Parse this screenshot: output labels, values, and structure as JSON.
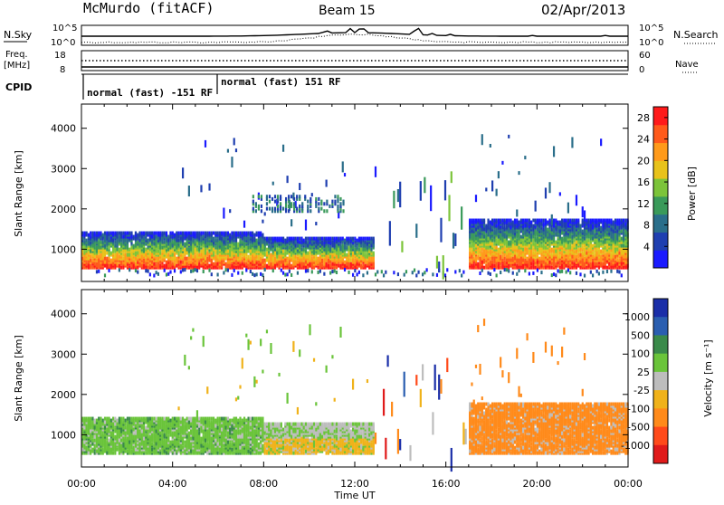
{
  "header": {
    "station": "McMurdo (fitACF)",
    "beam": "Beam 15",
    "date": "02/Apr/2013"
  },
  "top_panels": {
    "nsky_label": "N.Sky",
    "nsearch_label": "N.Search",
    "noise_tick_top": "10^5",
    "noise_tick_bottom": "10^0",
    "noise_tick_top_right": "10^5",
    "noise_tick_bottom_right": "10^0",
    "freq_label_1": "Freq.",
    "freq_label_2": "[MHz]",
    "freq_tick_top": "18",
    "freq_tick_bottom": "8",
    "nave_label": "Nave",
    "nave_tick_top": "60",
    "nave_tick_bottom": "0",
    "cpid_label": "CPID",
    "cpid_mode_1": "normal (fast) -151 RF",
    "cpid_mode_2": "normal (fast) 151 RF"
  },
  "colors": {
    "power_scale": [
      "#1a1aff",
      "#1f3fb0",
      "#2a6e8a",
      "#3a9a5a",
      "#7cc43a",
      "#e8c21a",
      "#ff9a1a",
      "#ff5a1a",
      "#ff1a1a"
    ],
    "velocity_scale": [
      "#1a2ea8",
      "#2a5eb0",
      "#3a8a4a",
      "#6ac43a",
      "#bdbdbd",
      "#f0b21a",
      "#ff8a1a",
      "#ff4a1a",
      "#e01a1a"
    ]
  },
  "chart_data": [
    {
      "type": "heatmap",
      "name": "power",
      "xlabel": "",
      "ylabel": "Slant Range [km]",
      "x_ticks": [
        "00:00",
        "04:00",
        "08:00",
        "12:00",
        "16:00",
        "20:00",
        "00:00"
      ],
      "y_ticks": [
        "1000",
        "2000",
        "3000",
        "4000"
      ],
      "ylim": [
        200,
        4600
      ],
      "xlim_hours": [
        0,
        24
      ],
      "colorbar_label": "Power [dB]",
      "colorbar_ticks": [
        "4",
        "8",
        "12",
        "16",
        "20",
        "24",
        "28"
      ],
      "colorbar_range": [
        0,
        30
      ]
    },
    {
      "type": "heatmap",
      "name": "velocity",
      "xlabel": "Time UT",
      "ylabel": "Slant Range [km]",
      "x_ticks": [
        "00:00",
        "04:00",
        "08:00",
        "12:00",
        "16:00",
        "20:00",
        "00:00"
      ],
      "y_ticks": [
        "1000",
        "2000",
        "3000",
        "4000"
      ],
      "ylim": [
        200,
        4600
      ],
      "xlim_hours": [
        0,
        24
      ],
      "colorbar_label": "Velocity [m s⁻¹]",
      "colorbar_ticks": [
        "1000",
        "500",
        "100",
        "25",
        "-25",
        "-100",
        "-500",
        "-1000"
      ]
    }
  ]
}
